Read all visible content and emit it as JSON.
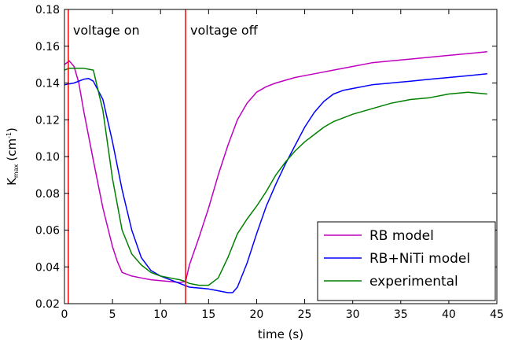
{
  "chart_data": {
    "type": "line",
    "xlabel": "time (s)",
    "ylabel_main": "K",
    "ylabel_sub": "max",
    "ylabel_unit": "(cm",
    "ylabel_exp": "-1",
    "ylabel_close": ")",
    "xlim": [
      0,
      45
    ],
    "ylim": [
      0.02,
      0.18
    ],
    "x_ticks": [
      0,
      5,
      10,
      15,
      20,
      25,
      30,
      35,
      40,
      45
    ],
    "y_ticks": [
      0.02,
      0.04,
      0.06,
      0.08,
      0.1,
      0.12,
      0.14,
      0.16,
      0.18
    ],
    "y_tick_labels": [
      "0.02",
      "0.04",
      "0.06",
      "0.08",
      "0.10",
      "0.12",
      "0.14",
      "0.16",
      "0.18"
    ],
    "grid": false,
    "legend_position": "lower-right",
    "vlines": [
      {
        "x": 0.4,
        "label": "voltage on",
        "color": "#ff0000"
      },
      {
        "x": 12.6,
        "label": "voltage off",
        "color": "#ff0000"
      }
    ],
    "series": [
      {
        "name": "RB model",
        "color": "#bf00bf",
        "x": [
          0,
          0.5,
          1,
          1.5,
          2,
          3,
          4,
          5,
          5.5,
          6,
          7,
          8,
          9,
          10,
          11,
          12,
          12.6,
          13,
          14,
          15,
          16,
          17,
          18,
          19,
          20,
          21,
          22,
          24,
          26,
          28,
          30,
          32,
          34,
          36,
          38,
          40,
          42,
          44
        ],
        "y": [
          0.15,
          0.152,
          0.149,
          0.14,
          0.125,
          0.098,
          0.072,
          0.051,
          0.043,
          0.037,
          0.035,
          0.034,
          0.033,
          0.0325,
          0.032,
          0.0315,
          0.032,
          0.041,
          0.056,
          0.072,
          0.09,
          0.106,
          0.12,
          0.129,
          0.135,
          0.138,
          0.14,
          0.143,
          0.145,
          0.147,
          0.149,
          0.151,
          0.152,
          0.153,
          0.154,
          0.155,
          0.156,
          0.157
        ]
      },
      {
        "name": "RB+NiTi model",
        "color": "#0000ff",
        "x": [
          0,
          1,
          2,
          2.5,
          3,
          4,
          5,
          6,
          7,
          8,
          9,
          10,
          11,
          12,
          13,
          14,
          15,
          16,
          17,
          17.5,
          18,
          19,
          20,
          21,
          22,
          23,
          24,
          25,
          26,
          27,
          28,
          29,
          30,
          32,
          34,
          36,
          38,
          40,
          42,
          44
        ],
        "y": [
          0.139,
          0.14,
          0.142,
          0.1425,
          0.141,
          0.131,
          0.108,
          0.082,
          0.06,
          0.045,
          0.038,
          0.035,
          0.033,
          0.031,
          0.029,
          0.0285,
          0.028,
          0.027,
          0.026,
          0.026,
          0.029,
          0.042,
          0.058,
          0.073,
          0.085,
          0.096,
          0.106,
          0.116,
          0.124,
          0.13,
          0.134,
          0.136,
          0.137,
          0.139,
          0.14,
          0.141,
          0.142,
          0.143,
          0.144,
          0.145
        ]
      },
      {
        "name": "experimental",
        "color": "#008000",
        "x": [
          0,
          0.5,
          1,
          2,
          3,
          4,
          5,
          6,
          7,
          8,
          9,
          10,
          11,
          12,
          12.6,
          13,
          14,
          15,
          16,
          17,
          18,
          19,
          20,
          21,
          22,
          23,
          24,
          25,
          26,
          27,
          28,
          29,
          30,
          32,
          34,
          36,
          38,
          40,
          42,
          44
        ],
        "y": [
          0.147,
          0.148,
          0.148,
          0.148,
          0.147,
          0.125,
          0.088,
          0.06,
          0.047,
          0.041,
          0.037,
          0.035,
          0.034,
          0.033,
          0.032,
          0.031,
          0.03,
          0.03,
          0.034,
          0.045,
          0.058,
          0.066,
          0.073,
          0.081,
          0.09,
          0.097,
          0.103,
          0.108,
          0.112,
          0.116,
          0.119,
          0.121,
          0.123,
          0.126,
          0.129,
          0.131,
          0.132,
          0.134,
          0.135,
          0.134
        ]
      }
    ]
  }
}
